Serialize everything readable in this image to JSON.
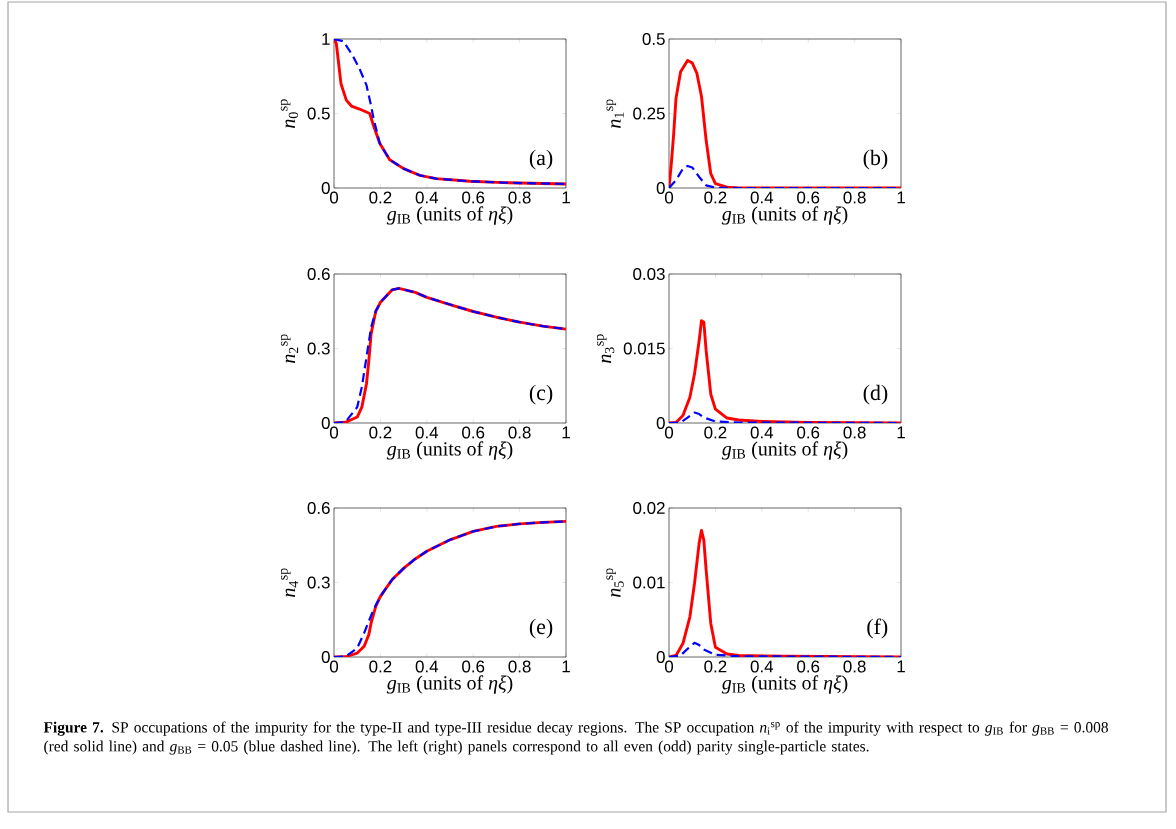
{
  "chart_data": [
    {
      "type": "line",
      "xlabel": "*g*$_{IB}$ (units of *ηξ*)",
      "ylabel": "*n*$_{0}$$^{sp}$",
      "xlim": [
        0,
        1
      ],
      "xticks": [
        0,
        0.2,
        0.4,
        0.6,
        0.8,
        1
      ],
      "ylim": [
        0,
        1
      ],
      "yticks": [
        0,
        0.5,
        1
      ],
      "annotations": [
        "(a)"
      ],
      "series": [
        {
          "color": "#ff0000",
          "line_style": "solid",
          "x": [
            0,
            0.01,
            0.03,
            0.053,
            0.075,
            0.11,
            0.154,
            0.168,
            0.197,
            0.24,
            0.3,
            0.37,
            0.44,
            0.585,
            0.73,
            1
          ],
          "values": [
            1,
            0.97,
            0.7,
            0.59,
            0.55,
            0.53,
            0.5,
            0.43,
            0.3,
            0.19,
            0.13,
            0.085,
            0.063,
            0.045,
            0.036,
            0.027
          ]
        },
        {
          "color": "#0000ff",
          "line_style": "dashed",
          "x": [
            0,
            0.04,
            0.08,
            0.11,
            0.14,
            0.16,
            0.17,
            0.197,
            0.24,
            0.3,
            0.37,
            0.44,
            0.585,
            0.73,
            1
          ],
          "values": [
            1,
            0.985,
            0.89,
            0.8,
            0.69,
            0.55,
            0.47,
            0.3,
            0.19,
            0.13,
            0.085,
            0.063,
            0.045,
            0.036,
            0.027
          ]
        }
      ]
    },
    {
      "type": "line",
      "xlabel": "*g*$_{IB}$ (units of *ηξ*)",
      "ylabel": "*n*$_{1}$$^{sp}$",
      "xlim": [
        0,
        1
      ],
      "xticks": [
        0,
        0.2,
        0.4,
        0.6,
        0.8,
        1
      ],
      "ylim": [
        0,
        0.5
      ],
      "yticks": [
        0,
        0.25,
        0.5
      ],
      "annotations": [
        "(b)"
      ],
      "series": [
        {
          "color": "#ff0000",
          "line_style": "solid",
          "x": [
            0,
            0.01,
            0.02,
            0.03,
            0.05,
            0.08,
            0.1,
            0.12,
            0.14,
            0.16,
            0.18,
            0.2,
            0.25,
            0.3,
            1
          ],
          "values": [
            0,
            0.082,
            0.18,
            0.3,
            0.39,
            0.428,
            0.42,
            0.385,
            0.307,
            0.16,
            0.048,
            0.015,
            0.003,
            0,
            0
          ]
        },
        {
          "color": "#0000ff",
          "line_style": "dashed",
          "x": [
            0,
            0.03,
            0.06,
            0.08,
            0.1,
            0.13,
            0.16,
            0.2,
            0.3,
            1
          ],
          "values": [
            0,
            0.026,
            0.065,
            0.074,
            0.069,
            0.037,
            0.009,
            0.001,
            0,
            0
          ]
        }
      ]
    },
    {
      "type": "line",
      "xlabel": "*g*$_{IB}$ (units of *ηξ*)",
      "ylabel": "*n*$_{2}$$^{sp}$",
      "xlim": [
        0,
        1
      ],
      "xticks": [
        0,
        0.2,
        0.4,
        0.6,
        0.8,
        1
      ],
      "ylim": [
        0,
        0.6
      ],
      "yticks": [
        0,
        0.3,
        0.6
      ],
      "annotations": [
        "(c)"
      ],
      "series": [
        {
          "color": "#ff0000",
          "line_style": "solid",
          "x": [
            0,
            0.05,
            0.1,
            0.12,
            0.14,
            0.15,
            0.16,
            0.18,
            0.2,
            0.25,
            0.28,
            0.35,
            0.4,
            0.5,
            0.6,
            0.7,
            0.8,
            0.9,
            1
          ],
          "values": [
            0,
            0.003,
            0.024,
            0.064,
            0.158,
            0.25,
            0.36,
            0.45,
            0.486,
            0.536,
            0.542,
            0.526,
            0.506,
            0.477,
            0.449,
            0.426,
            0.406,
            0.39,
            0.378
          ]
        },
        {
          "color": "#0000ff",
          "line_style": "dashed",
          "x": [
            0,
            0.05,
            0.1,
            0.12,
            0.14,
            0.16,
            0.18,
            0.2,
            0.25,
            0.28,
            0.35,
            0.4,
            0.5,
            0.6,
            0.7,
            0.8,
            0.9,
            1
          ],
          "values": [
            0,
            0.005,
            0.064,
            0.145,
            0.265,
            0.386,
            0.45,
            0.486,
            0.536,
            0.542,
            0.526,
            0.506,
            0.477,
            0.449,
            0.426,
            0.406,
            0.39,
            0.378
          ]
        }
      ]
    },
    {
      "type": "line",
      "xlabel": "*g*$_{IB}$ (units of *ηξ*)",
      "ylabel": "*n*$_{3}$$^{sp}$",
      "xlim": [
        0,
        1
      ],
      "xticks": [
        0,
        0.2,
        0.4,
        0.6,
        0.8,
        1
      ],
      "ylim": [
        0,
        0.03
      ],
      "yticks": [
        0,
        0.015,
        0.03
      ],
      "annotations": [
        "(d)"
      ],
      "series": [
        {
          "color": "#ff0000",
          "line_style": "solid",
          "x": [
            0,
            0.03,
            0.06,
            0.09,
            0.11,
            0.13,
            0.14,
            0.15,
            0.16,
            0.18,
            0.2,
            0.25,
            0.3,
            0.4,
            0.6,
            1
          ],
          "values": [
            0,
            0.0001,
            0.0015,
            0.0052,
            0.0099,
            0.0166,
            0.0206,
            0.0203,
            0.0146,
            0.0058,
            0.0028,
            0.001,
            0.0006,
            0.0003,
            0.0001,
            0
          ]
        },
        {
          "color": "#0000ff",
          "line_style": "dashed",
          "x": [
            0,
            0.05,
            0.08,
            0.11,
            0.13,
            0.15,
            0.2,
            0.3,
            1
          ],
          "values": [
            0,
            0.0001,
            0.0011,
            0.0021,
            0.0018,
            0.0011,
            0.0003,
            0.0001,
            0
          ]
        }
      ]
    },
    {
      "type": "line",
      "xlabel": "*g*$_{IB}$ (units of *ηξ*)",
      "ylabel": "*n*$_{4}$$^{sp}$",
      "xlim": [
        0,
        1
      ],
      "xticks": [
        0,
        0.2,
        0.4,
        0.6,
        0.8,
        1
      ],
      "ylim": [
        0,
        0.6
      ],
      "yticks": [
        0,
        0.3,
        0.6
      ],
      "annotations": [
        "(e)"
      ],
      "series": [
        {
          "color": "#ff0000",
          "line_style": "solid",
          "x": [
            0,
            0.05,
            0.1,
            0.13,
            0.15,
            0.16,
            0.18,
            0.2,
            0.25,
            0.3,
            0.35,
            0.4,
            0.5,
            0.6,
            0.7,
            0.8,
            0.9,
            1
          ],
          "values": [
            0,
            0.001,
            0.016,
            0.043,
            0.09,
            0.137,
            0.204,
            0.244,
            0.311,
            0.357,
            0.395,
            0.426,
            0.472,
            0.506,
            0.526,
            0.536,
            0.542,
            0.546
          ]
        },
        {
          "color": "#0000ff",
          "line_style": "dashed",
          "x": [
            0,
            0.05,
            0.1,
            0.13,
            0.15,
            0.17,
            0.2,
            0.25,
            0.3,
            0.35,
            0.4,
            0.5,
            0.6,
            0.7,
            0.8,
            0.9,
            1
          ],
          "values": [
            0,
            0.002,
            0.036,
            0.097,
            0.144,
            0.19,
            0.244,
            0.311,
            0.357,
            0.395,
            0.426,
            0.472,
            0.506,
            0.526,
            0.536,
            0.542,
            0.546
          ]
        }
      ]
    },
    {
      "type": "line",
      "xlabel": "*g*$_{IB}$ (units of *ηξ*)",
      "ylabel": "*n*$_{5}$$^{sp}$",
      "xlim": [
        0,
        1
      ],
      "xticks": [
        0,
        0.2,
        0.4,
        0.6,
        0.8,
        1
      ],
      "ylim": [
        0,
        0.02
      ],
      "yticks": [
        0,
        0.01,
        0.02
      ],
      "annotations": [
        "(f)",
        "**Figure 7.**  SP occupations of the impurity for the type-II and type-III residue decay regions. The SP occupation *n*$_{i}$$^{sp}$ of the impurity with respect to *g*$_{IB}$ for *g*$_{BB}$ = 0.008 (red solid line) and *g*$_{BB}$ = 0.05 (blue dashed line). The left (right) panels correspond to all even (odd) parity single-particle states."
      ],
      "series": [
        {
          "color": "#ff0000",
          "line_style": "solid",
          "x": [
            0,
            0.03,
            0.06,
            0.09,
            0.11,
            0.13,
            0.14,
            0.15,
            0.16,
            0.18,
            0.2,
            0.25,
            0.3,
            0.5,
            1
          ],
          "values": [
            0,
            0.0002,
            0.0018,
            0.0054,
            0.0099,
            0.0153,
            0.017,
            0.0157,
            0.0117,
            0.0045,
            0.0013,
            0.0004,
            0.0002,
            0.0001,
            0
          ]
        },
        {
          "color": "#0000ff",
          "line_style": "dashed",
          "x": [
            0,
            0.05,
            0.08,
            0.11,
            0.13,
            0.15,
            0.2,
            0.3,
            1
          ],
          "values": [
            0,
            0.0002,
            0.0011,
            0.0019,
            0.0016,
            0.001,
            0.0003,
            0.0001,
            0
          ]
        }
      ]
    }
  ]
}
